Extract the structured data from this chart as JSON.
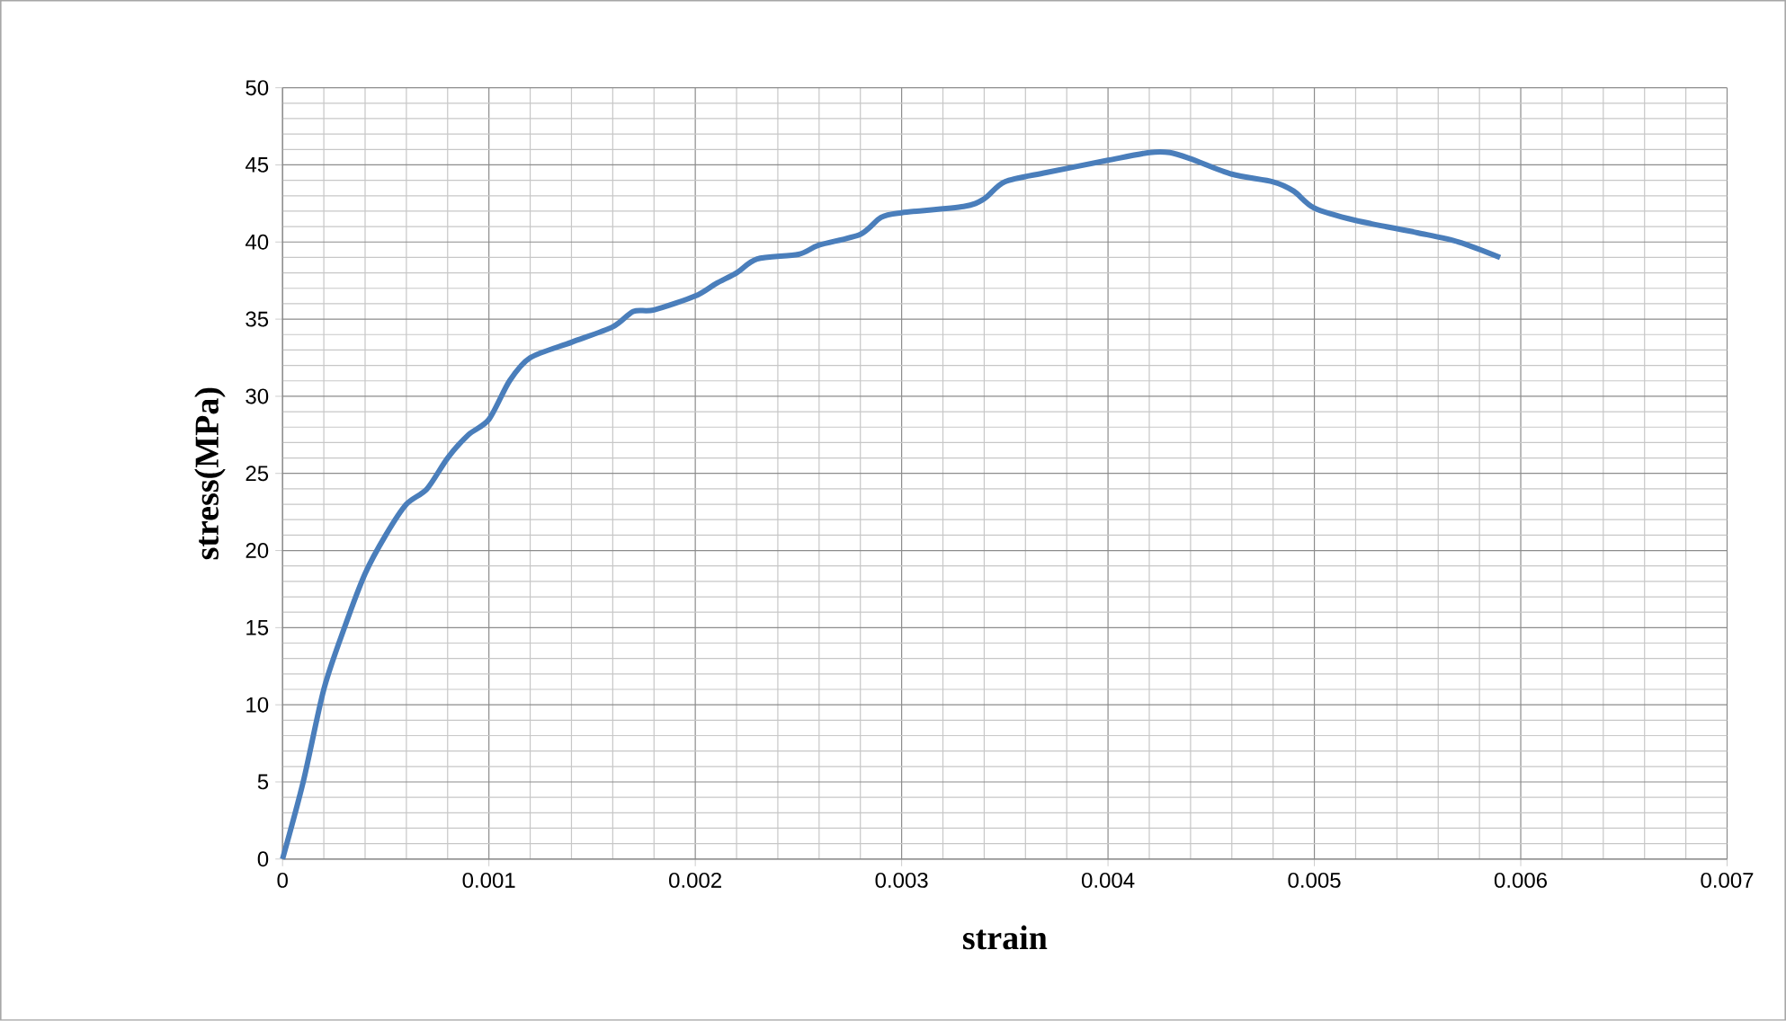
{
  "chart_data": {
    "type": "line",
    "xlabel": "strain",
    "ylabel": "stress(MPa)",
    "x": [
      0,
      0.0001,
      0.0002,
      0.0003,
      0.0004,
      0.0005,
      0.0006,
      0.0007,
      0.0008,
      0.0009,
      0.001,
      0.0011,
      0.0012,
      0.0014,
      0.0016,
      0.0017,
      0.0018,
      0.002,
      0.0021,
      0.0022,
      0.0023,
      0.0025,
      0.0026,
      0.0028,
      0.0029,
      0.003,
      0.0033,
      0.0034,
      0.0035,
      0.0037,
      0.004,
      0.0042,
      0.0043,
      0.0044,
      0.0046,
      0.0048,
      0.0049,
      0.005,
      0.0052,
      0.0055,
      0.0057,
      0.0059
    ],
    "series": [
      {
        "color": "#4a7ebb",
        "values": [
          0,
          5,
          11,
          15,
          18.5,
          21,
          23,
          24,
          26,
          27.5,
          28.5,
          31,
          32.5,
          33.5,
          34.5,
          35.5,
          35.6,
          36.5,
          37.3,
          38,
          38.9,
          39.2,
          39.8,
          40.5,
          41.6,
          41.9,
          42.3,
          42.8,
          43.9,
          44.5,
          45.3,
          45.8,
          45.8,
          45.4,
          44.4,
          43.9,
          43.3,
          42.2,
          41.4,
          40.6,
          40,
          39
        ]
      }
    ],
    "xlim": [
      0,
      0.007
    ],
    "ylim": [
      0,
      50
    ],
    "xticks": [
      0,
      0.001,
      0.002,
      0.003,
      0.004,
      0.005,
      0.006,
      0.007
    ],
    "yticks": [
      0,
      5,
      10,
      15,
      20,
      25,
      30,
      35,
      40,
      45,
      50
    ],
    "grid": true,
    "marker": "none",
    "line_style": "solid"
  }
}
